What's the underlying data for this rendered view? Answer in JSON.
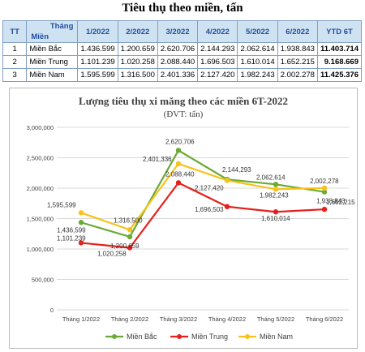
{
  "table": {
    "title": "Tiêu thụ theo miền, tấn",
    "header": {
      "tt": "TT",
      "diag_top": "Tháng",
      "diag_bottom": "Miền",
      "months": [
        "1/2022",
        "2/2022",
        "3/2022",
        "4/2022",
        "5/2022",
        "6/2022"
      ],
      "ytd": "YTD 6T"
    },
    "rows": [
      {
        "tt": "1",
        "name": "Miền Bắc",
        "values": [
          "1.436.599",
          "1.200.659",
          "2.620.706",
          "2.144.293",
          "2.062.614",
          "1.938.843"
        ],
        "ytd": "11.403.714"
      },
      {
        "tt": "2",
        "name": "Miền Trung",
        "values": [
          "1.101.239",
          "1.020.258",
          "2.088.440",
          "1.696.503",
          "1.610.014",
          "1.652.215"
        ],
        "ytd": "9.168.669"
      },
      {
        "tt": "3",
        "name": "Miền Nam",
        "values": [
          "1.595.599",
          "1.316.500",
          "2.401.336",
          "2.127.420",
          "1.982.243",
          "2.002.278"
        ],
        "ytd": "11.425.376"
      }
    ]
  },
  "chart_data": {
    "type": "line",
    "title": "Lượng tiêu thụ xi măng theo các miền 6T-2022",
    "subtitle": "(ĐVT: tấn)",
    "categories": [
      "Tháng 1/2022",
      "Tháng 2/2022",
      "Tháng 3/2022",
      "Tháng 4/2022",
      "Tháng 5/2022",
      "Tháng 6/2022"
    ],
    "yticks": [
      "0",
      "500,000",
      "1,000,000",
      "1,500,000",
      "2,000,000",
      "2,500,000",
      "3,000,000"
    ],
    "ylim": [
      0,
      3000000
    ],
    "grid": true,
    "legend": "bottom",
    "series": [
      {
        "name": "Miền Bắc",
        "color": "#6aaa35",
        "values": [
          1436599,
          1200659,
          2620706,
          2144293,
          2062614,
          1938843
        ],
        "labels": [
          "1,436,599",
          "1,200,659",
          "2,620,706",
          "2,144,293",
          "2,062,614",
          "1,938,843"
        ]
      },
      {
        "name": "Miền Trung",
        "color": "#e6211d",
        "values": [
          1101239,
          1020258,
          2088440,
          1696503,
          1610014,
          1652215
        ],
        "labels": [
          "1,101,239",
          "1,020,258",
          "2,088,440",
          "1,696,503",
          "1,610,014",
          "1,652,215"
        ]
      },
      {
        "name": "Miền Nam",
        "color": "#f7c21a",
        "values": [
          1595599,
          1316500,
          2401336,
          2127420,
          1982243,
          2002278
        ],
        "labels": [
          "1,595,599",
          "1,316,500",
          "2,401,336",
          "2,127,420",
          "1,982,243",
          "2,002,278"
        ]
      }
    ]
  }
}
